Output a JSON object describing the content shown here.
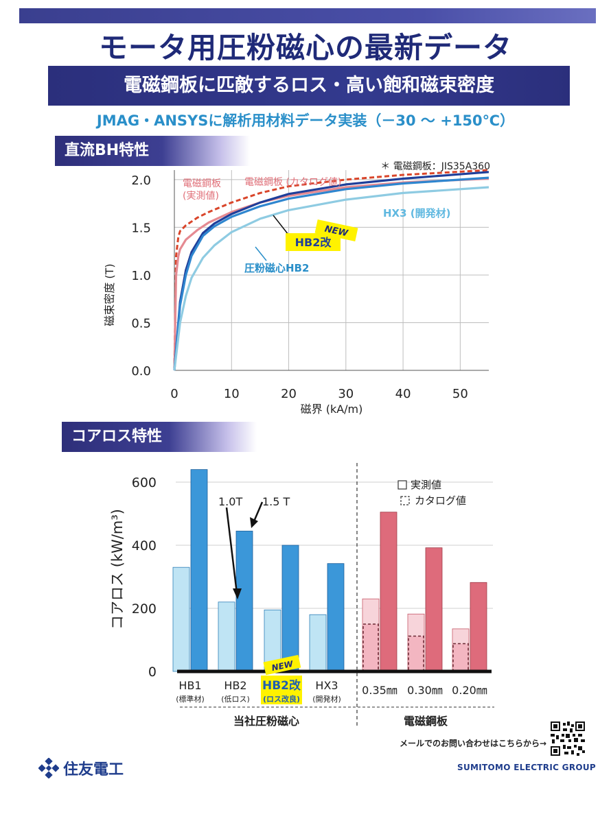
{
  "header": {
    "title": "モータ用圧粉磁心の最新データ",
    "subtitle": "電磁鋼板に匹敵するロス・高い飽和磁束密度",
    "implementation_note": "JMAG・ANSYSに解析用材料データ実装（－30 ～ +150℃）"
  },
  "colors": {
    "navy": "#2b2f7c",
    "title_blue": "#1f2a78",
    "cyan_text": "#2a8fc9",
    "hb1_light": "#b7e1f3",
    "hb_dark": "#3a96d8",
    "steel_light": "#f6c9d2",
    "steel_dark": "#df6b7a",
    "highlight_yellow": "#fff200"
  },
  "bh_section": {
    "heading": "直流BH特性",
    "footnote": "＊ 電磁鋼板：JIS35A360",
    "label_steel_measured": [
      "電磁鋼板",
      "(実測値)"
    ],
    "label_steel_catalog": "電磁鋼板 (カタログ値)",
    "label_hx3": "HX3 (開発材)",
    "label_hb2": "圧粉磁心HB2",
    "label_hb2kai": "HB2改",
    "new_badge": "NEW"
  },
  "core_loss_section": {
    "heading": "コアロス特性",
    "legend": {
      "measured": "実測値",
      "catalog": "カタログ値"
    },
    "annotation_1t": "1.0T",
    "annotation_15t": "1.5 T",
    "new_badge": "NEW",
    "categories": [
      {
        "name": "HB1",
        "sub": "(標準材)"
      },
      {
        "name": "HB2",
        "sub": "(低ロス)"
      },
      {
        "name": "HB2改",
        "sub": "(ロス改良)"
      },
      {
        "name": "HX3",
        "sub": "(開発材)"
      },
      {
        "name": "0.35㎜",
        "sub": ""
      },
      {
        "name": "0.30㎜",
        "sub": ""
      },
      {
        "name": "0.20㎜",
        "sub": ""
      }
    ],
    "group_powder": "当社圧粉磁心",
    "group_steel": "電磁鋼板"
  },
  "chart_data": [
    {
      "type": "line",
      "xlabel": "磁界 (kA/m)",
      "ylabel": "磁束密度 (T)",
      "xlim": [
        0,
        55
      ],
      "ylim": [
        0,
        2.1
      ],
      "xticks": [
        0,
        10,
        20,
        30,
        40,
        50
      ],
      "yticks": [
        0.0,
        0.5,
        1.0,
        1.5,
        2.0
      ],
      "ytick_labels": [
        "0.0",
        "0.5",
        "1.0",
        "1.5",
        "2.0"
      ],
      "series": [
        {
          "name": "電磁鋼板 (カタログ値)",
          "color": "#d9452a",
          "dashed": true,
          "x": [
            0,
            0.3,
            0.7,
            1,
            2,
            4,
            6,
            10,
            15,
            20,
            30,
            40,
            55
          ],
          "y": [
            0,
            1.2,
            1.4,
            1.46,
            1.52,
            1.6,
            1.66,
            1.76,
            1.86,
            1.93,
            2.0,
            2.05,
            2.1
          ]
        },
        {
          "name": "電磁鋼板 (実測値)",
          "color": "#e58a92",
          "dashed": false,
          "x": [
            0,
            0.3,
            0.7,
            1,
            2,
            4,
            6,
            10,
            15,
            20,
            30,
            40,
            55
          ],
          "y": [
            0,
            1.0,
            1.2,
            1.27,
            1.37,
            1.47,
            1.55,
            1.66,
            1.76,
            1.83,
            1.92,
            1.97,
            2.01
          ]
        },
        {
          "name": "HB2改",
          "color": "#1f3f9a",
          "dashed": false,
          "x": [
            0,
            1,
            2,
            3,
            5,
            7,
            10,
            15,
            20,
            30,
            40,
            55
          ],
          "y": [
            0,
            0.72,
            1.05,
            1.24,
            1.44,
            1.54,
            1.64,
            1.76,
            1.85,
            1.95,
            2.01,
            2.08
          ]
        },
        {
          "name": "圧粉磁心HB2",
          "color": "#2f86cf",
          "dashed": false,
          "x": [
            0,
            1,
            2,
            3,
            5,
            7,
            10,
            15,
            20,
            30,
            40,
            55
          ],
          "y": [
            0,
            0.68,
            1.0,
            1.2,
            1.41,
            1.51,
            1.61,
            1.72,
            1.8,
            1.9,
            1.96,
            2.02
          ]
        },
        {
          "name": "HX3 (開発材)",
          "color": "#8ecbe2",
          "dashed": false,
          "x": [
            0,
            1,
            2,
            3,
            5,
            7,
            10,
            15,
            20,
            30,
            40,
            55
          ],
          "y": [
            0,
            0.5,
            0.78,
            0.97,
            1.18,
            1.31,
            1.45,
            1.59,
            1.68,
            1.79,
            1.86,
            1.92
          ]
        }
      ]
    },
    {
      "type": "bar",
      "ylabel": "コアロス (kW/m³)",
      "ylim": [
        0,
        650
      ],
      "yticks": [
        0,
        200,
        400,
        600
      ],
      "categories": [
        "HB1",
        "HB2",
        "HB2改",
        "HX3",
        "0.35㎜",
        "0.30㎜",
        "0.20㎜"
      ],
      "series": [
        {
          "name": "1.0T",
          "values": [
            330,
            220,
            195,
            180,
            230,
            182,
            135
          ]
        },
        {
          "name": "1.5 T",
          "values": [
            640,
            445,
            400,
            342,
            505,
            392,
            282
          ]
        },
        {
          "name": "カタログ値",
          "values": [
            null,
            null,
            null,
            null,
            150,
            112,
            88
          ]
        }
      ]
    }
  ],
  "footer": {
    "company": "住友電工",
    "contact": "メールでのお問い合わせはこちらから→",
    "group": "SUMITOMO ELECTRIC GROUP"
  }
}
